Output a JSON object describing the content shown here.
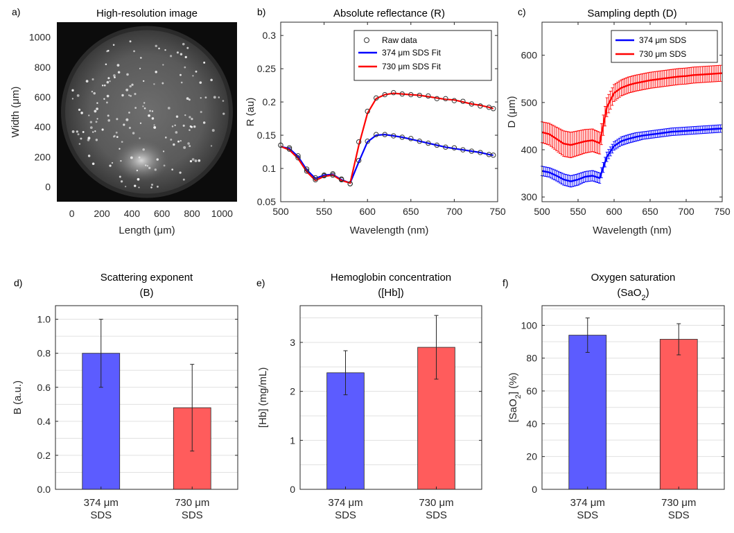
{
  "chart_data": [
    {
      "panel": "a)",
      "type": "image",
      "title": "High-resolution image",
      "xlabel": "Length (μm)",
      "ylabel": "Width (μm)",
      "xlim": [
        -100,
        1100
      ],
      "ylim": [
        -100,
        1100
      ],
      "xticks": [
        "0",
        "200",
        "400",
        "600",
        "800",
        "1000"
      ],
      "yticks": [
        "0",
        "200",
        "400",
        "600",
        "800",
        "1000"
      ]
    },
    {
      "panel": "b)",
      "type": "line",
      "title": "Absolute reflectance (R)",
      "xlabel": "Wavelength (nm)",
      "ylabel": "R (au)",
      "xlim": [
        500,
        750
      ],
      "ylim": [
        0.05,
        0.32
      ],
      "xticks": [
        "500",
        "550",
        "600",
        "650",
        "700",
        "750"
      ],
      "yticks": [
        "0.05",
        "0.1",
        "0.15",
        "0.2",
        "0.25",
        "0.3"
      ],
      "legend": "top-right",
      "series": [
        {
          "name": "374 μm SDS Fit",
          "color": "#0000ff",
          "x": [
            500,
            510,
            520,
            530,
            540,
            550,
            560,
            570,
            580,
            590,
            600,
            610,
            620,
            630,
            640,
            650,
            660,
            670,
            680,
            690,
            700,
            710,
            720,
            730,
            740,
            745
          ],
          "values": [
            0.133,
            0.13,
            0.118,
            0.098,
            0.085,
            0.09,
            0.091,
            0.083,
            0.078,
            0.11,
            0.14,
            0.15,
            0.151,
            0.149,
            0.147,
            0.144,
            0.141,
            0.138,
            0.135,
            0.132,
            0.13,
            0.128,
            0.126,
            0.124,
            0.121,
            0.12
          ]
        },
        {
          "name": "730 μm SDS Fit",
          "color": "#ff0000",
          "x": [
            500,
            510,
            520,
            530,
            540,
            550,
            560,
            570,
            580,
            590,
            600,
            610,
            620,
            630,
            640,
            650,
            660,
            670,
            680,
            690,
            700,
            710,
            720,
            730,
            740,
            745
          ],
          "values": [
            0.133,
            0.128,
            0.115,
            0.095,
            0.082,
            0.088,
            0.09,
            0.082,
            0.078,
            0.135,
            0.183,
            0.205,
            0.211,
            0.213,
            0.212,
            0.211,
            0.21,
            0.208,
            0.206,
            0.204,
            0.203,
            0.2,
            0.197,
            0.195,
            0.192,
            0.19
          ]
        }
      ],
      "markers": [
        {
          "name": "Raw data",
          "symbol": "circle",
          "x": [
            500,
            510,
            520,
            530,
            540,
            550,
            560,
            570,
            580,
            590,
            600,
            610,
            620,
            630,
            640,
            650,
            660,
            670,
            680,
            690,
            700,
            710,
            720,
            730,
            740,
            745
          ],
          "values_374": [
            0.135,
            0.131,
            0.119,
            0.099,
            0.086,
            0.09,
            0.092,
            0.084,
            0.077,
            0.112,
            0.141,
            0.151,
            0.151,
            0.149,
            0.147,
            0.145,
            0.141,
            0.138,
            0.135,
            0.132,
            0.131,
            0.128,
            0.126,
            0.124,
            0.121,
            0.12
          ],
          "values_730": [
            0.135,
            0.129,
            0.116,
            0.096,
            0.083,
            0.089,
            0.09,
            0.083,
            0.077,
            0.14,
            0.186,
            0.206,
            0.211,
            0.214,
            0.212,
            0.211,
            0.21,
            0.209,
            0.205,
            0.205,
            0.202,
            0.201,
            0.197,
            0.194,
            0.192,
            0.19
          ]
        }
      ]
    },
    {
      "panel": "c)",
      "type": "line",
      "title": "Sampling depth (D)",
      "xlabel": "Wavelength (nm)",
      "ylabel": "D (μm)",
      "xlim": [
        500,
        750
      ],
      "ylim": [
        290,
        670
      ],
      "xticks": [
        "500",
        "550",
        "600",
        "650",
        "700",
        "750"
      ],
      "yticks": [
        "300",
        "400",
        "500",
        "600"
      ],
      "legend": "top-right",
      "series": [
        {
          "name": "374 μm SDS",
          "color": "#0000ff",
          "x": [
            500,
            510,
            520,
            530,
            540,
            550,
            560,
            570,
            580,
            590,
            600,
            610,
            620,
            630,
            640,
            650,
            660,
            670,
            680,
            690,
            700,
            710,
            720,
            730,
            740,
            750
          ],
          "values": [
            355,
            352,
            345,
            337,
            333,
            337,
            343,
            345,
            340,
            385,
            408,
            418,
            423,
            427,
            430,
            432,
            434,
            436,
            438,
            439,
            440,
            441,
            442,
            443,
            444,
            445
          ],
          "error": [
            10,
            10,
            11,
            12,
            12,
            12,
            11,
            11,
            11,
            10,
            9,
            9,
            9,
            9,
            8,
            8,
            8,
            8,
            8,
            8,
            8,
            8,
            8,
            8,
            8,
            8
          ]
        },
        {
          "name": "730 μm SDS",
          "color": "#ff0000",
          "x": [
            500,
            510,
            520,
            530,
            540,
            550,
            560,
            570,
            580,
            590,
            600,
            610,
            620,
            630,
            640,
            650,
            660,
            670,
            680,
            690,
            700,
            710,
            720,
            730,
            740,
            750
          ],
          "values": [
            437,
            433,
            423,
            413,
            410,
            414,
            418,
            420,
            414,
            490,
            520,
            531,
            537,
            541,
            544,
            547,
            549,
            551,
            553,
            555,
            556,
            558,
            559,
            560,
            561,
            562
          ],
          "error": [
            22,
            23,
            25,
            27,
            27,
            26,
            25,
            24,
            23,
            20,
            18,
            17,
            17,
            17,
            17,
            17,
            17,
            17,
            17,
            17,
            17,
            17,
            17,
            17,
            17,
            17
          ]
        }
      ]
    },
    {
      "panel": "d)",
      "type": "bar",
      "title": "Scattering exponent",
      "subtitle": "(B)",
      "ylabel": "B (a.u.)",
      "ylim": [
        0,
        1.08
      ],
      "yticks": [
        "0.0",
        "0.2",
        "0.4",
        "0.6",
        "0.8",
        "1.0"
      ],
      "categories": [
        [
          "374 μm",
          "SDS"
        ],
        [
          "730 μm",
          "SDS"
        ]
      ],
      "values": [
        0.8,
        0.48
      ],
      "error": [
        0.2,
        0.255
      ],
      "colors": [
        "#5c5cff",
        "#ff5c5c"
      ]
    },
    {
      "panel": "e)",
      "type": "bar",
      "title": "Hemoglobin concentration",
      "subtitle": "([Hb])",
      "ylabel": "[Hb] (mg/mL)",
      "ylim": [
        0,
        3.75
      ],
      "yticks": [
        "0",
        "1",
        "2",
        "3"
      ],
      "categories": [
        [
          "374 μm",
          "SDS"
        ],
        [
          "730 μm",
          "SDS"
        ]
      ],
      "values": [
        2.38,
        2.9
      ],
      "error": [
        0.45,
        0.65
      ],
      "colors": [
        "#5c5cff",
        "#ff5c5c"
      ]
    },
    {
      "panel": "f)",
      "type": "bar",
      "title": "Oxygen saturation",
      "subtitle": "(SaO2)",
      "ylabel": "[SaO2] (%)",
      "ylim": [
        0,
        112
      ],
      "yticks": [
        "0",
        "20",
        "40",
        "60",
        "80",
        "100"
      ],
      "categories": [
        [
          "374 μm",
          "SDS"
        ],
        [
          "730 μm",
          "SDS"
        ]
      ],
      "values": [
        94,
        91.5
      ],
      "error": [
        10.5,
        9.5
      ],
      "colors": [
        "#5c5cff",
        "#ff5c5c"
      ]
    }
  ]
}
